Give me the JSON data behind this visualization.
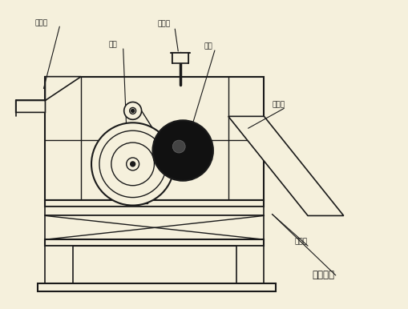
{
  "bg_color": "#f5f0dc",
  "line_color": "#1a1a1a",
  "dark_fill": "#111111",
  "figsize": [
    5.09,
    3.86
  ],
  "dpi": 100,
  "labels": {
    "feed_inlet": "送料口",
    "drum": "滚筒",
    "water_pipe": "清水管",
    "magnetic_roller": "磁辊",
    "outlet": "出矿口",
    "tailings": "尾矿口",
    "coflow": "顺流下选"
  }
}
